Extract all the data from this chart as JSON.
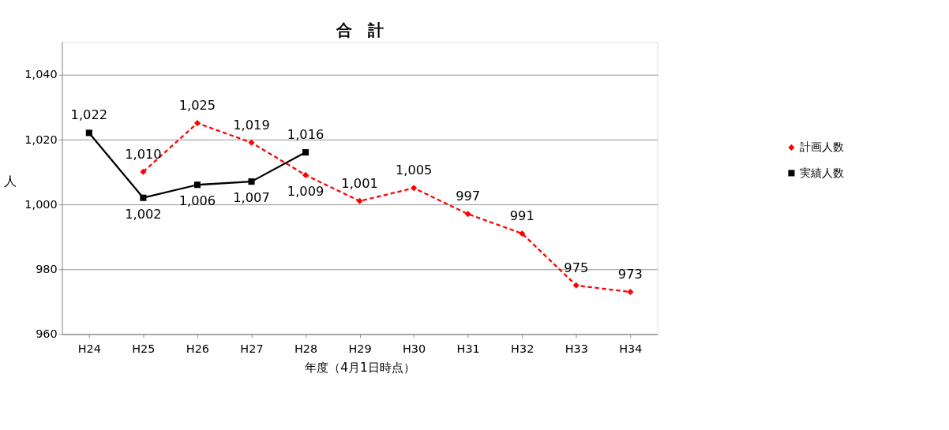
{
  "chart_data": {
    "type": "line",
    "title": "合　計",
    "xlabel": "年度（4月1日時点）",
    "ylabel": "人",
    "categories": [
      "H24",
      "H25",
      "H26",
      "H27",
      "H28",
      "H29",
      "H30",
      "H31",
      "H32",
      "H33",
      "H34"
    ],
    "series": [
      {
        "name": "計画人数",
        "color": "#ff0000",
        "marker": "diamond",
        "line_style": "dashed",
        "values": [
          null,
          1010,
          1025,
          1019,
          1009,
          1001,
          1005,
          997,
          991,
          975,
          973
        ],
        "value_labels": [
          null,
          "1,010",
          "1,025",
          "1,019",
          "1,009",
          "1,001",
          "1,005",
          "997",
          "991",
          "975",
          "973"
        ]
      },
      {
        "name": "実績人数",
        "color": "#000000",
        "marker": "square",
        "line_style": "solid",
        "values": [
          1022,
          1002,
          1006,
          1007,
          1016,
          null,
          null,
          null,
          null,
          null,
          null
        ],
        "value_labels": [
          "1,022",
          "1,002",
          "1,006",
          "1,007",
          "1,016",
          null,
          null,
          null,
          null,
          null,
          null
        ]
      }
    ],
    "ylim": [
      960,
      1050
    ],
    "yticks": [
      960,
      980,
      {
        "value": 1000,
        "label": "1,000"
      },
      {
        "value": 1020,
        "label": "1,020"
      },
      {
        "value": 1040,
        "label": "1,040"
      }
    ],
    "grid": "y",
    "legend": "right"
  }
}
